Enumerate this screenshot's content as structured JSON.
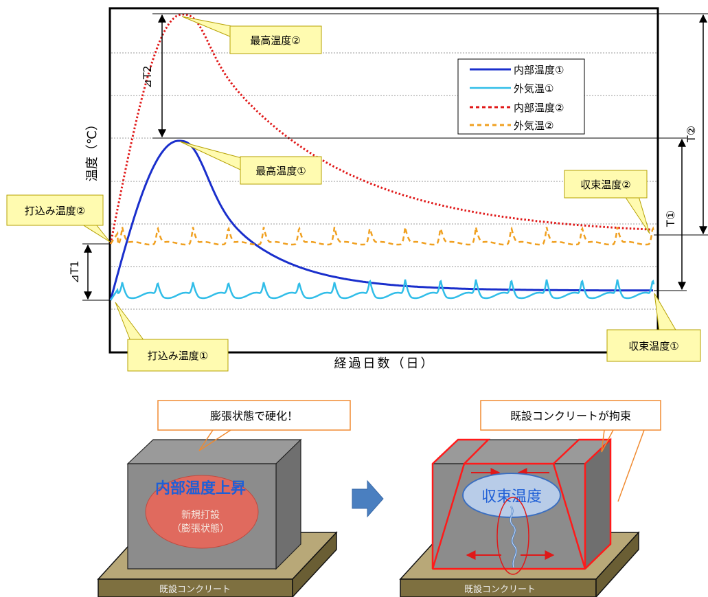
{
  "chart": {
    "xlabel": "経過日数（日）",
    "ylabel": "温度（℃）",
    "legend": [
      {
        "label": "内部温度①",
        "color": "#1a2fcc",
        "style": "solid"
      },
      {
        "label": "外気温①",
        "color": "#30bde8",
        "style": "solid"
      },
      {
        "label": "内部温度②",
        "color": "#e01818",
        "style": "dotted"
      },
      {
        "label": "外気温②",
        "color": "#f0a020",
        "style": "dashed"
      }
    ],
    "callouts": {
      "max2": "最高温度②",
      "max1": "最高温度①",
      "placement2": "打込み温度②",
      "placement1": "打込み温度①",
      "converge2": "収束温度②",
      "converge1": "収束温度①"
    },
    "dims": {
      "dT2": "⊿T2",
      "dT1": "⊿T1",
      "T1": "T①",
      "T2": "T②"
    }
  },
  "diagram": {
    "left": {
      "callout": "膨張状態で硬化！",
      "title": "内部温度上昇",
      "ellipse_line1": "新規打設",
      "ellipse_line2": "（膨張状態）",
      "base": "既設コンクリート"
    },
    "right": {
      "callout": "既設コンクリートが拘束",
      "title": "収束温度",
      "base": "既設コンクリート"
    },
    "arrow": "right-arrow-icon"
  }
}
